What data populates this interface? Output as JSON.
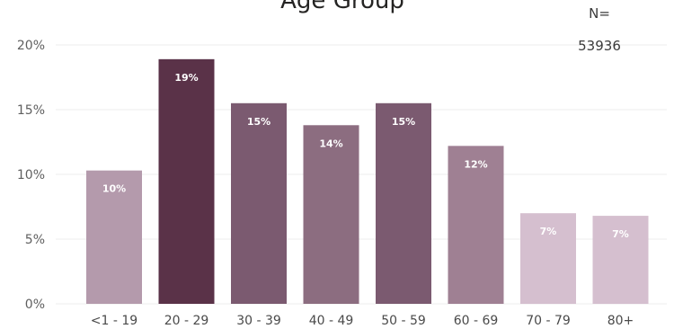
{
  "chart_data": {
    "type": "bar",
    "title": "Age Group",
    "sample_size_label": "N=",
    "sample_size_value": "53936",
    "categories": [
      "<1 - 19",
      "20 - 29",
      "30 - 39",
      "40 - 49",
      "50 - 59",
      "60 - 69",
      "70 - 79",
      "80+"
    ],
    "values": [
      10.3,
      18.9,
      15.5,
      13.8,
      15.5,
      12.2,
      7.0,
      6.8
    ],
    "data_labels": [
      "10%",
      "19%",
      "15%",
      "14%",
      "15%",
      "12%",
      "7%",
      "7%"
    ],
    "colors": [
      "#b49aac",
      "#5a3248",
      "#7b5a70",
      "#8c6d80",
      "#7b5a70",
      "#9f8093",
      "#d5bfcf",
      "#d5bfcf"
    ],
    "ylim": [
      0,
      20
    ],
    "yticks": [
      0,
      5,
      10,
      15,
      20
    ],
    "ytick_labels": [
      "0%",
      "5%",
      "10%",
      "15%",
      "20%"
    ],
    "grid": true,
    "xlabel": "",
    "ylabel": ""
  }
}
